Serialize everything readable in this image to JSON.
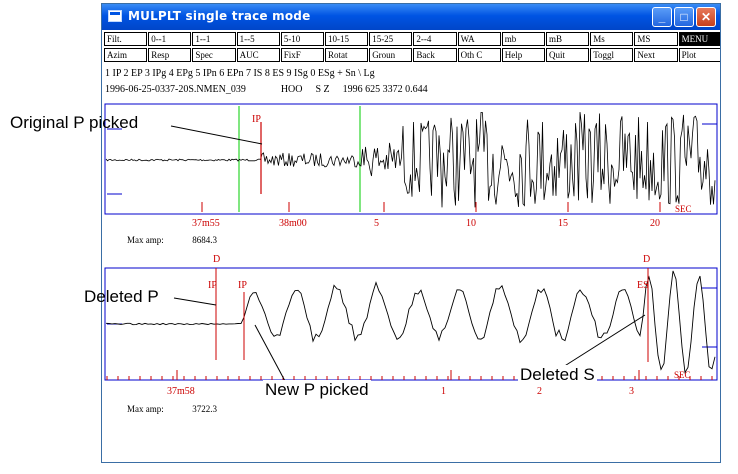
{
  "window": {
    "title": "MULPLT single trace mode"
  },
  "buttons_row1": [
    {
      "label": "Filt."
    },
    {
      "label": "0--1"
    },
    {
      "label": "1--1"
    },
    {
      "label": "1--5"
    },
    {
      "label": "5-10"
    },
    {
      "label": "10-15"
    },
    {
      "label": "15-25"
    },
    {
      "label": "2--4"
    },
    {
      "label": "WA"
    },
    {
      "label": "mb"
    },
    {
      "label": "mB"
    },
    {
      "label": "Ms"
    },
    {
      "label": "MS"
    },
    {
      "label": "MENU"
    }
  ],
  "buttons_row2": [
    {
      "label": "Azim"
    },
    {
      "label": "Resp"
    },
    {
      "label": "Spec"
    },
    {
      "label": "AUC"
    },
    {
      "label": "FixF"
    },
    {
      "label": "Rotat"
    },
    {
      "label": "Groun"
    },
    {
      "label": "Back"
    },
    {
      "label": "Oth C"
    },
    {
      "label": "Help"
    },
    {
      "label": "Quit"
    },
    {
      "label": "Toggl"
    },
    {
      "label": "Next"
    },
    {
      "label": "Plot"
    }
  ],
  "phase_keys": "1 IP 2 EP 3 IPg 4 EPg 5 IPn 6 EPn 7 IS 8 ES 9 ISg 0 ESg + Sn \\ Lg",
  "trace_info": {
    "filename": "1996-06-25-0337-20S.NMEN_039",
    "station": "HOO",
    "component": "S Z",
    "time": "1996 625 3372 0.644"
  },
  "trace1": {
    "phase_label": "IP",
    "ticks": [
      {
        "label": "37m55"
      },
      {
        "label": "38m00"
      },
      {
        "label": "5"
      },
      {
        "label": "10"
      },
      {
        "label": "15"
      },
      {
        "label": "20"
      }
    ],
    "sec_label": "SEC",
    "max_amp_label": "Max amp:",
    "max_amp_value": "8684.3"
  },
  "trace2": {
    "phase_labels": [
      "D",
      "IP",
      "IP",
      "D",
      "ES"
    ],
    "ticks": [
      {
        "label": "37m58"
      },
      {
        "label": "1"
      },
      {
        "label": "2"
      },
      {
        "label": "3"
      }
    ],
    "sec_label": "SEC",
    "max_amp_label": "Max amp:",
    "max_amp_value": "3722.3"
  },
  "annotations": {
    "original_p": "Original P picked",
    "deleted_p": "Deleted P",
    "new_p": "New P picked",
    "deleted_s": "Deleted S"
  },
  "colors": {
    "pick": "#cc0000",
    "window": "#00cc00",
    "axis": "#0000cc",
    "trace": "#000000",
    "title_bar": "#0054e3"
  }
}
